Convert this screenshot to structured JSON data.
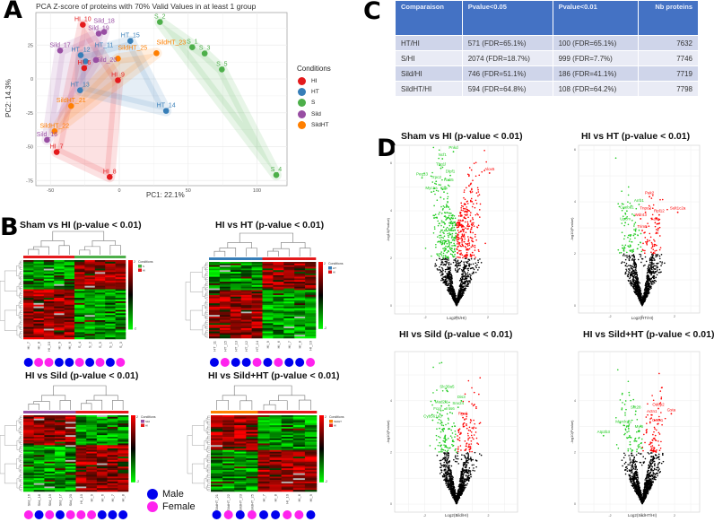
{
  "panel_letters": {
    "a": "A",
    "b": "B",
    "c": "C",
    "d": "D"
  },
  "colors": {
    "HI": "#e41a1c",
    "HT": "#377eb8",
    "S": "#4daf4a",
    "Sild": "#984ea3",
    "SildHT": "#ff7f00",
    "male": "#0000ee",
    "female": "#ff22ee",
    "up": "#ff0000",
    "down": "#22cc22",
    "ns": "#000000",
    "table_header": "#4472c4"
  },
  "chart_data": [
    {
      "type": "scatter",
      "title": "PCA Z-score of proteins with 70% Valid Values in at least 1 group",
      "xlabel": "PC1: 22.1%",
      "ylabel": "PC2: 14.3%",
      "xlim": [
        -60,
        122
      ],
      "ylim": [
        -79,
        50
      ],
      "xticks": [
        "-50",
        "0",
        "50",
        "100"
      ],
      "yticks": [
        "-75",
        "-50",
        "-25",
        "0",
        "25"
      ],
      "grid": true,
      "legend": {
        "title": "Conditions",
        "position": "right",
        "entries": [
          "HI",
          "HT",
          "S",
          "Sild",
          "SildHT"
        ]
      },
      "points": [
        {
          "label": "HI_10",
          "group": "HI",
          "x": -26.5,
          "y": 40
        },
        {
          "label": "HI_6",
          "group": "HI",
          "x": -25.5,
          "y": 8
        },
        {
          "label": "HI_9",
          "group": "HI",
          "x": -1,
          "y": -1
        },
        {
          "label": "HI_7",
          "group": "HI",
          "x": -45.5,
          "y": -54
        },
        {
          "label": "HI_8",
          "group": "HI",
          "x": -7,
          "y": -72.4
        },
        {
          "label": "HT_15",
          "group": "HT",
          "x": 8,
          "y": 28
        },
        {
          "label": "HT_12",
          "group": "HT",
          "x": -28,
          "y": 17.5
        },
        {
          "label": "HT_11",
          "group": "HT",
          "x": -24.5,
          "y": 13
        },
        {
          "label": "HT_13",
          "group": "HT",
          "x": -28.5,
          "y": -8.4
        },
        {
          "label": "HT_14",
          "group": "HT",
          "x": 34,
          "y": -23.6
        },
        {
          "label": "S_2",
          "group": "S",
          "x": 29.5,
          "y": 42
        },
        {
          "label": "S_1",
          "group": "S",
          "x": 53,
          "y": 23.4
        },
        {
          "label": "S_3",
          "group": "S",
          "x": 62,
          "y": 18.8
        },
        {
          "label": "S_5",
          "group": "S",
          "x": 74.5,
          "y": 7
        },
        {
          "label": "S_4",
          "group": "S",
          "x": 114,
          "y": -71
        },
        {
          "label": "Sild_19",
          "group": "Sild",
          "x": -15,
          "y": 33.5
        },
        {
          "label": "Sild_18",
          "group": "Sild",
          "x": -11,
          "y": 34.7
        },
        {
          "label": "Sild_17",
          "group": "Sild",
          "x": -43,
          "y": 21
        },
        {
          "label": "Sild_20",
          "group": "Sild",
          "x": -17,
          "y": 14
        },
        {
          "label": "Sild_16",
          "group": "Sild",
          "x": -52.5,
          "y": -45
        },
        {
          "label": "SildHT_25",
          "group": "SildHT",
          "x": -1,
          "y": 15
        },
        {
          "label": "SildHT_23",
          "group": "SildHT",
          "x": 27,
          "y": 19
        },
        {
          "label": "SildHT_21",
          "group": "SildHT",
          "x": -35,
          "y": -20
        },
        {
          "label": "SildHT_22",
          "group": "SildHT",
          "x": -47,
          "y": -38.6
        }
      ]
    },
    {
      "type": "table",
      "columns": [
        "Comparaison",
        "Pvalue<0.05",
        "Pvalue<0.01",
        "Nb proteins"
      ],
      "rows": [
        [
          "HT/HI",
          "571 (FDR=65.1%)",
          "100 (FDR=65.1%)",
          "7632"
        ],
        [
          "S/HI",
          "2074 (FDR=18.7%)",
          "999 (FDR=7.7%)",
          "7746"
        ],
        [
          "Sild/HI",
          "746 (FDR=51.1%)",
          "186 (FDR=41.1%)",
          "7719"
        ],
        [
          "SildHT/HI",
          "594 (FDR=64.8%)",
          "108 (FDR=64.2%)",
          "7798"
        ]
      ]
    },
    {
      "type": "heatmap",
      "panels": [
        {
          "title": "Sham vs HI (p-value < 0.01)",
          "groups": [
            "HI",
            "HI",
            "HI",
            "HI",
            "HI",
            "S",
            "S",
            "S",
            "S",
            "S"
          ],
          "columns": [
            "HI_7",
            "HI_8",
            "HI_10",
            "HI_9",
            "HI_6",
            "S_4",
            "S_2",
            "S_5",
            "S_1",
            "S_3"
          ],
          "sex": [
            "M",
            "F",
            "F",
            "M",
            "M",
            "F",
            "M",
            "F",
            "M",
            "F"
          ],
          "legend_conditions": [
            "S",
            "HI"
          ],
          "scale": [
            "2",
            "-2"
          ],
          "top_fraction": 0.36,
          "top_sign_first_group": -1
        },
        {
          "title": "HI vs HT (p-value < 0.01)",
          "groups": [
            "HT",
            "HT",
            "HT",
            "HT",
            "HT",
            "HI",
            "HI",
            "HI",
            "HI",
            "HI"
          ],
          "columns": [
            "HT_11",
            "HT_15",
            "HT_13",
            "HT_12",
            "HT_14",
            "HI_9",
            "HI_6",
            "HI_7",
            "HI_8",
            "HI_10"
          ],
          "sex": [
            "M",
            "F",
            "M",
            "M",
            "F",
            "M",
            "F",
            "M",
            "M",
            "F"
          ],
          "legend_conditions": [
            "HT",
            "HI"
          ],
          "scale": [
            "2",
            "-2"
          ],
          "top_fraction": 0.36,
          "top_sign_first_group": -1
        },
        {
          "title": "HI vs Sild (p-value < 0.01)",
          "groups": [
            "Sild",
            "Sild",
            "Sild",
            "Sild",
            "Sild",
            "HI",
            "HI",
            "HI",
            "HI",
            "HI"
          ],
          "columns": [
            "Sild_16",
            "Sild_18",
            "Sild_19",
            "Sild_17",
            "Sild_20",
            "HI_10",
            "HI_9",
            "HI_6",
            "HI_7",
            "HI_8"
          ],
          "sex": [
            "F",
            "M",
            "F",
            "M",
            "F",
            "F",
            "F",
            "M",
            "M",
            "M"
          ],
          "legend_conditions": [
            "Sild",
            "HI"
          ],
          "scale": [
            "2",
            "-2"
          ],
          "top_fraction": 0.4,
          "top_sign_first_group": 1
        },
        {
          "title": "HI vs Sild+HT (p-value < 0.01)",
          "groups": [
            "SildHT",
            "SildHT",
            "SildHT",
            "SildHT",
            "HI",
            "HI",
            "HI",
            "HI",
            "HI"
          ],
          "columns": [
            "SildHT_21",
            "SildHT_22",
            "SildHT_23",
            "SildHT_25",
            "HI_7",
            "HI_8",
            "HI_10",
            "HI_6",
            "HI_9"
          ],
          "sex": [
            "M",
            "F",
            "M",
            "F",
            "M",
            "M",
            "F",
            "F",
            "M"
          ],
          "legend_conditions": [
            "SildHT",
            "HI"
          ],
          "scale": [
            "2",
            "-2"
          ],
          "top_fraction": 0.45,
          "top_sign_first_group": 1
        }
      ],
      "legend_title": "Conditions",
      "sex_legend": {
        "male": "Male",
        "female": "Female"
      }
    },
    {
      "type": "scatter",
      "subtype": "volcano",
      "ylabel": "-log10(Pvalue)",
      "threshold_neglog10p": 2,
      "xticks": [
        "-2",
        "0",
        "2"
      ],
      "yticks": [
        "0",
        "2",
        "4",
        "6"
      ],
      "panels": [
        {
          "title": "Sham vs HI (p-value < 0.01)",
          "xlabel": "Log2(S/HI)",
          "n_significant": 999,
          "spread": 1.15,
          "labels": [
            {
              "text": "Pnkd",
              "x": -0.2,
              "y": 6.6,
              "dir": "down"
            },
            {
              "text": "Ncf1",
              "x": -0.9,
              "y": 6.3,
              "dir": "down"
            },
            {
              "text": "Thg1l",
              "x": -1.0,
              "y": 5.9,
              "dir": "down"
            },
            {
              "text": "Dlpf1",
              "x": -0.4,
              "y": 5.6,
              "dir": "down"
            },
            {
              "text": "Peg13",
              "x": -2.2,
              "y": 5.5,
              "dir": "down"
            },
            {
              "text": "Trpc2",
              "x": -1.3,
              "y": 5.35,
              "dir": "down"
            },
            {
              "text": "Rab5",
              "x": -0.5,
              "y": 5.4,
              "dir": "down"
            },
            {
              "text": "Myc1a",
              "x": -1.6,
              "y": 4.9,
              "dir": "down"
            },
            {
              "text": "Cys",
              "x": -0.8,
              "y": 4.9,
              "dir": "down"
            },
            {
              "text": "Alox5",
              "x": 2.1,
              "y": 5.7,
              "dir": "up"
            }
          ]
        },
        {
          "title": "HI vs HT (p-value < 0.01)",
          "xlabel": "Log2(HT/HI)",
          "n_significant": 100,
          "spread": 0.9,
          "labels": [
            {
              "text": "Pak2",
              "x": 0.45,
              "y": 4.3,
              "dir": "up"
            },
            {
              "text": "Arrb1",
              "x": -0.2,
              "y": 4.0,
              "dir": "down"
            },
            {
              "text": "Coeba1",
              "x": -0.95,
              "y": 3.75,
              "dir": "down"
            },
            {
              "text": "Tnpo2",
              "x": 0.2,
              "y": 3.7,
              "dir": "up"
            },
            {
              "text": "Rpl12",
              "x": 1.05,
              "y": 3.6,
              "dir": "up"
            },
            {
              "text": "Sult1c2a",
              "x": 2.2,
              "y": 3.7,
              "dir": "up"
            },
            {
              "text": "Wdr43",
              "x": -0.1,
              "y": 3.45,
              "dir": "up"
            },
            {
              "text": "Adar",
              "x": 0.8,
              "y": 3.3,
              "dir": "up"
            },
            {
              "text": "Upcm",
              "x": -1.05,
              "y": 3.3,
              "dir": "down"
            },
            {
              "text": "Trim5",
              "x": 0.0,
              "y": 3.0,
              "dir": "up"
            }
          ]
        },
        {
          "title": "HI vs Sild (p-value < 0.01)",
          "xlabel": "Log2(Sild/HI)",
          "n_significant": 186,
          "spread": 0.95,
          "labels": [
            {
              "text": "Slc30a5",
              "x": -0.6,
              "y": 4.5,
              "dir": "down"
            },
            {
              "text": "Dis3",
              "x": 0.3,
              "y": 4.1,
              "dir": "down"
            },
            {
              "text": "Mad2l1",
              "x": -0.95,
              "y": 3.9,
              "dir": "down"
            },
            {
              "text": "Snx24",
              "x": 0.1,
              "y": 3.85,
              "dir": "down"
            },
            {
              "text": "Fcgr",
              "x": -1.2,
              "y": 3.65,
              "dir": "down"
            },
            {
              "text": "Ints6",
              "x": -0.4,
              "y": 3.65,
              "dir": "down"
            },
            {
              "text": "Cyb561a3",
              "x": -1.5,
              "y": 3.35,
              "dir": "down"
            },
            {
              "text": "Rgs9",
              "x": 0.4,
              "y": 3.45,
              "dir": "up"
            }
          ]
        },
        {
          "title": "HI vs Sild+HT (p-value < 0.01)",
          "xlabel": "Log2(SildHT/HI)",
          "n_significant": 108,
          "spread": 0.95,
          "labels": [
            {
              "text": "Odcp2",
              "x": 1.0,
              "y": 3.8,
              "dir": "up"
            },
            {
              "text": "Gsta",
              "x": 1.8,
              "y": 3.6,
              "dir": "up"
            },
            {
              "text": "Actn1",
              "x": 0.6,
              "y": 3.55,
              "dir": "up"
            },
            {
              "text": "Coro1",
              "x": 0.95,
              "y": 3.2,
              "dir": "up"
            },
            {
              "text": "Skt28",
              "x": -0.4,
              "y": 3.7,
              "dir": "down"
            },
            {
              "text": "Marcksl1",
              "x": -1.15,
              "y": 3.15,
              "dir": "down"
            },
            {
              "text": "Myl6",
              "x": -0.2,
              "y": 2.95,
              "dir": "down"
            },
            {
              "text": "Atp2b3",
              "x": -2.4,
              "y": 2.75,
              "dir": "down"
            }
          ]
        }
      ]
    }
  ]
}
